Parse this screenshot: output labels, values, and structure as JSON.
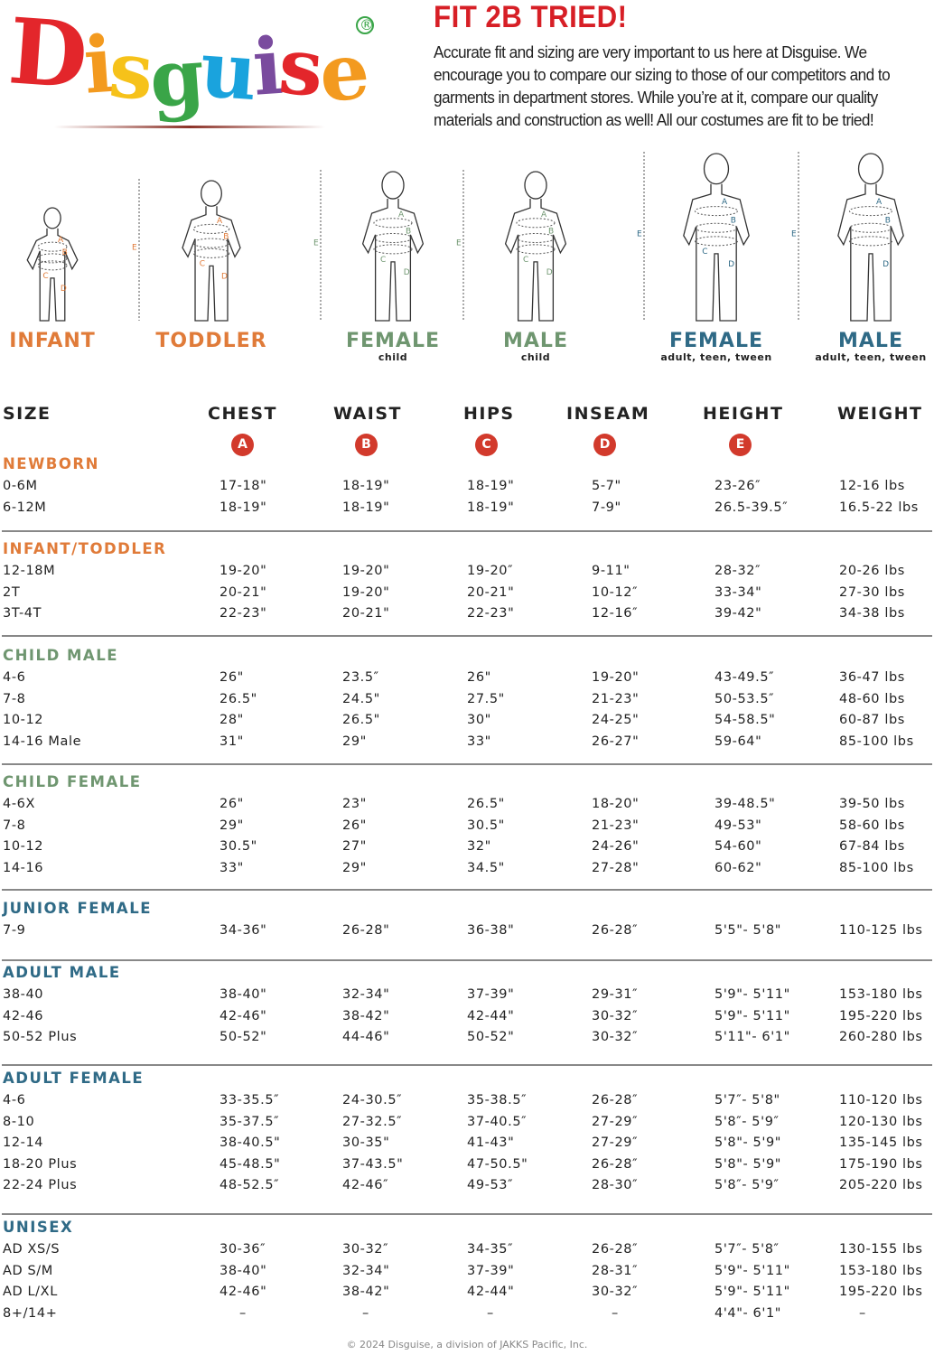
{
  "logo": {
    "text": "Disguise",
    "registered": "®",
    "letter_colors": [
      "#e3262b",
      "#f39a1f",
      "#f6c21a",
      "#3aa548",
      "#1aa3dd",
      "#7a4b9e",
      "#e3262b",
      "#f39a1f"
    ]
  },
  "header": {
    "title": "FIT 2B TRIED!",
    "intro": "Accurate fit and sizing are very important to us here at Disguise. We encourage you to compare our sizing to those of our competitors and to garments in department stores. While you’re at it, compare our quality materials and construction as well! All our costumes are fit to be tried!"
  },
  "colors": {
    "infant_toddler": "#e07b39",
    "child": "#6f9670",
    "adult": "#2f6a86",
    "badge": "#d23a2c",
    "title": "#d71f26"
  },
  "figures": [
    {
      "label": "INFANT",
      "sub": "",
      "group": "infant_toddler",
      "marks": [
        "A",
        "B",
        "C",
        "D",
        "E"
      ]
    },
    {
      "label": "TODDLER",
      "sub": "",
      "group": "infant_toddler",
      "marks": [
        "A",
        "B",
        "C",
        "D",
        "E"
      ]
    },
    {
      "label": "FEMALE",
      "sub": "child",
      "group": "child",
      "marks": [
        "A",
        "B",
        "C",
        "D",
        "E"
      ]
    },
    {
      "label": "MALE",
      "sub": "child",
      "group": "child",
      "marks": [
        "A",
        "B",
        "C",
        "D",
        "E"
      ]
    },
    {
      "label": "FEMALE",
      "sub": "adult, teen, tween",
      "group": "adult",
      "marks": [
        "A",
        "B",
        "C",
        "D",
        "E"
      ]
    },
    {
      "label": "MALE",
      "sub": "adult, teen, tween",
      "group": "adult",
      "marks": [
        "A",
        "B",
        "D",
        "E"
      ]
    }
  ],
  "table": {
    "columns": [
      {
        "label": "SIZE",
        "badge": ""
      },
      {
        "label": "CHEST",
        "badge": "A"
      },
      {
        "label": "WAIST",
        "badge": "B"
      },
      {
        "label": "HIPS",
        "badge": "C"
      },
      {
        "label": "INSEAM",
        "badge": "D"
      },
      {
        "label": "HEIGHT",
        "badge": "E"
      },
      {
        "label": "WEIGHT",
        "badge": ""
      }
    ],
    "sections": [
      {
        "title": "NEWBORN",
        "group": "infant_toddler",
        "rows": [
          [
            "0-6M",
            "17-18\"",
            "18-19\"",
            "18-19\"",
            "5-7\"",
            "23-26″",
            "12-16 lbs"
          ],
          [
            "6-12M",
            "18-19\"",
            "18-19\"",
            "18-19\"",
            "7-9\"",
            "26.5-39.5″",
            "16.5-22 lbs"
          ]
        ]
      },
      {
        "title": "INFANT/TODDLER",
        "group": "infant_toddler",
        "rows": [
          [
            "12-18M",
            "19-20\"",
            "19-20\"",
            "19-20″",
            "9-11\"",
            "28-32″",
            "20-26 lbs"
          ],
          [
            "2T",
            "20-21\"",
            "19-20\"",
            "20-21\"",
            "10-12″",
            "33-34\"",
            "27-30 lbs"
          ],
          [
            "3T-4T",
            "22-23\"",
            "20-21\"",
            "22-23\"",
            "12-16″",
            "39-42\"",
            "34-38 lbs"
          ]
        ]
      },
      {
        "title": "CHILD MALE",
        "group": "child",
        "rows": [
          [
            "4-6",
            "26\"",
            "23.5″",
            "26\"",
            "19-20\"",
            "43-49.5″",
            "36-47 lbs"
          ],
          [
            "7-8",
            "26.5\"",
            "24.5\"",
            "27.5\"",
            "21-23\"",
            "50-53.5″",
            "48-60 lbs"
          ],
          [
            "10-12",
            "28\"",
            "26.5\"",
            "30\"",
            "24-25\"",
            "54-58.5\"",
            "60-87 lbs"
          ],
          [
            "14-16 Male",
            "31\"",
            "29\"",
            "33\"",
            "26-27\"",
            "59-64\"",
            "85-100 lbs"
          ]
        ]
      },
      {
        "title": "CHILD FEMALE",
        "group": "child",
        "rows": [
          [
            "4-6X",
            "26\"",
            "23\"",
            "26.5\"",
            "18-20\"",
            "39-48.5\"",
            "39-50 lbs"
          ],
          [
            "7-8",
            "29\"",
            "26\"",
            "30.5\"",
            "21-23\"",
            "49-53\"",
            "58-60 lbs"
          ],
          [
            "10-12",
            "30.5\"",
            "27\"",
            "32\"",
            "24-26\"",
            "54-60\"",
            "67-84 lbs"
          ],
          [
            "14-16",
            "33\"",
            "29\"",
            "34.5\"",
            "27-28\"",
            "60-62\"",
            "85-100 lbs"
          ]
        ]
      },
      {
        "title": "JUNIOR FEMALE",
        "group": "adult",
        "rows": [
          [
            "7-9",
            "34-36\"",
            "26-28\"",
            "36-38\"",
            "26-28″",
            "5'5\"- 5'8\"",
            "110-125 lbs"
          ]
        ]
      },
      {
        "title": "ADULT MALE",
        "group": "adult",
        "rows": [
          [
            "38-40",
            "38-40\"",
            "32-34\"",
            "37-39\"",
            "29-31″",
            "5'9\"- 5'11\"",
            "153-180 lbs"
          ],
          [
            "42-46",
            "42-46\"",
            "38-42\"",
            "42-44\"",
            "30-32″",
            "5'9\"- 5'11\"",
            "195-220 lbs"
          ],
          [
            "50-52 Plus",
            "50-52\"",
            "44-46\"",
            "50-52\"",
            "30-32″",
            "5'11\"- 6'1\"",
            "260-280 lbs"
          ]
        ]
      },
      {
        "title": "ADULT FEMALE",
        "group": "adult",
        "rows": [
          [
            "4-6",
            "33-35.5″",
            "24-30.5″",
            "35-38.5″",
            "26-28″",
            "5'7″- 5'8\"",
            "110-120 lbs"
          ],
          [
            "8-10",
            "35-37.5″",
            "27-32.5″",
            "37-40.5″",
            "27-29″",
            "5'8″- 5'9″",
            "120-130 lbs"
          ],
          [
            "12-14",
            "38-40.5\"",
            "30-35\"",
            "41-43\"",
            "27-29″",
            "5'8\"- 5'9\"",
            "135-145 lbs"
          ],
          [
            "18-20 Plus",
            "45-48.5\"",
            "37-43.5\"",
            "47-50.5\"",
            "26-28″",
            "5'8\"- 5'9\"",
            "175-190 lbs"
          ],
          [
            "22-24 Plus",
            "48-52.5″",
            "42-46″",
            "49-53″",
            "28-30″",
            "5'8″- 5'9″",
            "205-220 lbs"
          ]
        ]
      },
      {
        "title": "UNISEX",
        "group": "adult",
        "rows": [
          [
            "AD XS/S",
            "30-36″",
            "30-32″",
            "34-35″",
            "26-28″",
            "5'7″- 5'8″",
            "130-155 lbs"
          ],
          [
            "AD S/M",
            "38-40\"",
            "32-34\"",
            "37-39\"",
            "28-31″",
            "5'9\"- 5'11\"",
            "153-180 lbs"
          ],
          [
            "AD L/XL",
            "42-46\"",
            "38-42\"",
            "42-44\"",
            "30-32″",
            "5'9\"- 5'11\"",
            "195-220 lbs"
          ],
          [
            "8+/14+",
            "–",
            "–",
            "–",
            "–",
            "4'4\"- 6'1\"",
            "–"
          ]
        ]
      }
    ]
  },
  "footer": "© 2024 Disguise, a division of JAKKS Pacific, Inc."
}
